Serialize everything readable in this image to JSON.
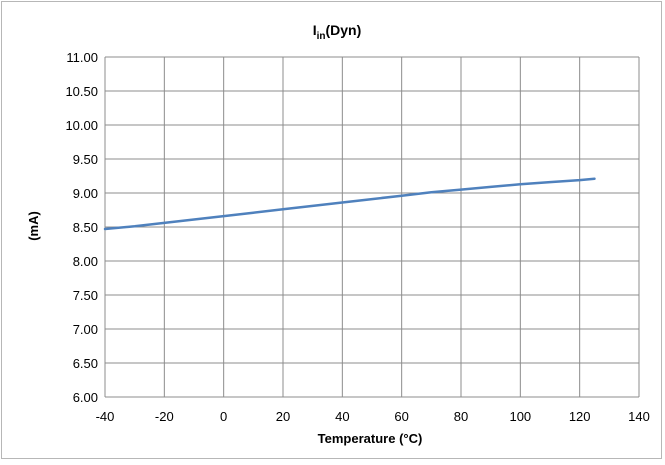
{
  "chart_data": {
    "type": "line",
    "title": {
      "main": "I",
      "sub": "in",
      "suffix": "(Dyn)"
    },
    "xlabel": "Temperature (°C)",
    "ylabel": "(mA)",
    "xlim": [
      -40,
      140
    ],
    "ylim": [
      6.0,
      11.0
    ],
    "x_ticks": [
      -40,
      -20,
      0,
      20,
      40,
      60,
      80,
      100,
      120,
      140
    ],
    "y_ticks": [
      6.0,
      6.5,
      7.0,
      7.5,
      8.0,
      8.5,
      9.0,
      9.5,
      10.0,
      10.5,
      11.0
    ],
    "x_tick_labels": [
      "-40",
      "-20",
      "0",
      "20",
      "40",
      "60",
      "80",
      "100",
      "120",
      "140"
    ],
    "y_tick_labels": [
      "6.00",
      "6.50",
      "7.00",
      "7.50",
      "8.00",
      "8.50",
      "9.00",
      "9.50",
      "10.00",
      "10.50",
      "11.00"
    ],
    "grid": true,
    "legend": "none",
    "series": [
      {
        "color": "#4f81bd",
        "x": [
          -40,
          -30,
          -20,
          -10,
          0,
          10,
          20,
          30,
          40,
          50,
          60,
          70,
          80,
          90,
          100,
          110,
          120,
          125
        ],
        "y": [
          8.47,
          8.51,
          8.56,
          8.61,
          8.66,
          8.71,
          8.76,
          8.81,
          8.86,
          8.91,
          8.96,
          9.01,
          9.05,
          9.09,
          9.13,
          9.16,
          9.19,
          9.21
        ]
      }
    ]
  }
}
